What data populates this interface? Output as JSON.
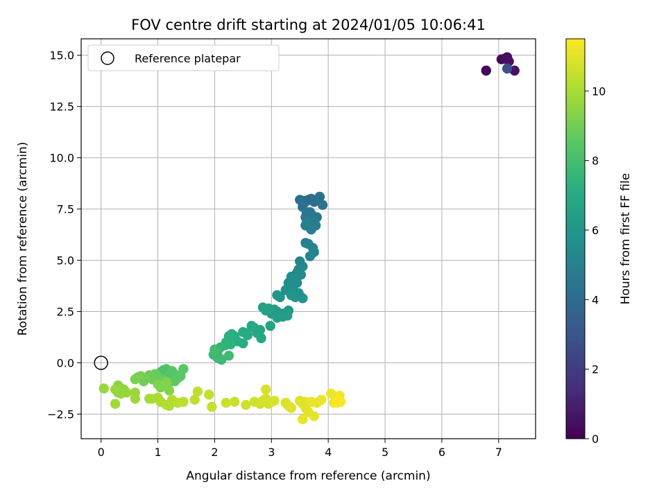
{
  "chart_data": {
    "type": "scatter",
    "title": "FOV centre drift starting at 2024/01/05 10:06:41",
    "xlabel": "Angular distance from reference (arcmin)",
    "ylabel": "Rotation from reference (arcmin)",
    "xlim": [
      -0.35,
      7.65
    ],
    "ylim": [
      -3.7,
      15.8
    ],
    "x_ticks": [
      0,
      1,
      2,
      3,
      4,
      5,
      6,
      7
    ],
    "y_ticks": [
      -2.5,
      0.0,
      2.5,
      5.0,
      7.5,
      10.0,
      12.5,
      15.0
    ],
    "x_tick_labels": [
      "0",
      "1",
      "2",
      "3",
      "4",
      "5",
      "6",
      "7"
    ],
    "y_tick_labels": [
      "−2.5",
      "0.0",
      "2.5",
      "5.0",
      "7.5",
      "10.0",
      "12.5",
      "15.0"
    ],
    "grid": true,
    "legend": {
      "placement": "upper-left",
      "entries": [
        "Reference platepar"
      ]
    },
    "reference_point": {
      "x": 0.0,
      "y": 0.0
    },
    "colorbar": {
      "label": "Hours from first FF file",
      "colormap": "viridis",
      "range": [
        0,
        11.5
      ],
      "ticks": [
        0,
        2,
        4,
        6,
        8,
        10
      ],
      "tick_labels": [
        "0",
        "2",
        "4",
        "6",
        "8",
        "10"
      ]
    },
    "points": [
      [
        6.78,
        14.25,
        0.1
      ],
      [
        7.05,
        14.8,
        0.2
      ],
      [
        7.12,
        14.85,
        0.3
      ],
      [
        7.15,
        14.9,
        0.4
      ],
      [
        7.18,
        14.7,
        0.5
      ],
      [
        7.28,
        14.25,
        0.6
      ],
      [
        7.15,
        14.35,
        2.8
      ],
      [
        3.55,
        7.9,
        4.0
      ],
      [
        3.6,
        7.85,
        4.05
      ],
      [
        3.65,
        7.95,
        4.1
      ],
      [
        3.7,
        8.0,
        4.15
      ],
      [
        3.75,
        7.85,
        4.2
      ],
      [
        3.5,
        7.95,
        4.25
      ],
      [
        3.55,
        7.6,
        4.3
      ],
      [
        3.85,
        8.1,
        4.35
      ],
      [
        3.9,
        7.7,
        4.4
      ],
      [
        3.62,
        7.3,
        4.5
      ],
      [
        3.68,
        7.35,
        4.55
      ],
      [
        3.72,
        7.2,
        4.6
      ],
      [
        3.6,
        7.1,
        4.65
      ],
      [
        3.8,
        7.1,
        4.7
      ],
      [
        3.75,
        6.8,
        4.75
      ],
      [
        3.65,
        6.9,
        4.8
      ],
      [
        3.6,
        6.7,
        4.85
      ],
      [
        3.7,
        6.5,
        4.9
      ],
      [
        3.78,
        6.7,
        4.95
      ],
      [
        3.62,
        6.85,
        5.0
      ],
      [
        3.6,
        5.85,
        5.05
      ],
      [
        3.65,
        5.8,
        5.1
      ],
      [
        3.73,
        5.6,
        5.15
      ],
      [
        3.75,
        5.4,
        5.2
      ],
      [
        3.68,
        5.2,
        5.25
      ],
      [
        3.5,
        4.95,
        5.3
      ],
      [
        3.55,
        4.7,
        5.35
      ],
      [
        3.48,
        4.55,
        5.4
      ],
      [
        3.45,
        4.4,
        5.45
      ],
      [
        3.52,
        4.3,
        5.5
      ],
      [
        3.4,
        4.1,
        5.55
      ],
      [
        3.35,
        4.2,
        5.6
      ],
      [
        3.45,
        3.9,
        5.65
      ],
      [
        3.3,
        3.9,
        5.7
      ],
      [
        3.25,
        3.55,
        5.75
      ],
      [
        3.38,
        3.6,
        5.8
      ],
      [
        3.48,
        3.4,
        5.85
      ],
      [
        3.55,
        3.15,
        5.9
      ],
      [
        3.42,
        3.2,
        5.95
      ],
      [
        3.35,
        3.3,
        5.98
      ],
      [
        3.1,
        3.3,
        6.05
      ],
      [
        3.15,
        3.2,
        6.1
      ],
      [
        3.3,
        2.55,
        6.15
      ],
      [
        3.2,
        2.4,
        6.2
      ],
      [
        3.1,
        2.5,
        6.25
      ],
      [
        3.05,
        2.6,
        6.3
      ],
      [
        3.0,
        2.4,
        6.35
      ],
      [
        3.2,
        2.25,
        6.4
      ],
      [
        3.1,
        2.2,
        6.45
      ],
      [
        3.28,
        2.3,
        6.5
      ],
      [
        2.85,
        2.7,
        6.55
      ],
      [
        2.9,
        2.55,
        6.6
      ],
      [
        2.95,
        2.65,
        6.65
      ],
      [
        2.98,
        1.8,
        6.7
      ],
      [
        2.8,
        1.6,
        6.75
      ],
      [
        2.75,
        1.45,
        6.8
      ],
      [
        2.82,
        1.2,
        6.85
      ],
      [
        2.7,
        1.7,
        6.9
      ],
      [
        2.65,
        1.8,
        6.95
      ],
      [
        2.55,
        1.45,
        7.0
      ],
      [
        2.5,
        1.5,
        7.05
      ],
      [
        2.58,
        1.35,
        7.1
      ],
      [
        2.5,
        0.95,
        7.15
      ],
      [
        2.4,
        1.05,
        7.2
      ],
      [
        2.35,
        1.3,
        7.25
      ],
      [
        2.3,
        1.4,
        7.3
      ],
      [
        2.25,
        1.3,
        7.35
      ],
      [
        2.2,
        1.0,
        7.4
      ],
      [
        2.28,
        0.9,
        7.45
      ],
      [
        2.18,
        0.85,
        7.5
      ],
      [
        2.1,
        0.75,
        7.55
      ],
      [
        2.0,
        0.65,
        7.6
      ],
      [
        2.05,
        0.55,
        7.65
      ],
      [
        1.98,
        0.4,
        7.7
      ],
      [
        2.1,
        0.2,
        7.75
      ],
      [
        2.05,
        0.25,
        7.8
      ],
      [
        2.12,
        0.15,
        7.85
      ],
      [
        2.25,
        0.35,
        7.9
      ],
      [
        2.0,
        0.6,
        7.95
      ],
      [
        1.1,
        -0.35,
        8.2
      ],
      [
        1.05,
        -0.45,
        8.25
      ],
      [
        1.15,
        -0.3,
        8.3
      ],
      [
        1.2,
        -0.5,
        8.35
      ],
      [
        1.3,
        -0.55,
        8.4
      ],
      [
        1.25,
        -0.4,
        8.45
      ],
      [
        1.45,
        -0.3,
        8.5
      ],
      [
        1.4,
        -0.65,
        8.55
      ],
      [
        1.35,
        -0.75,
        8.6
      ],
      [
        1.3,
        -0.9,
        8.65
      ],
      [
        1.2,
        -0.95,
        8.7
      ],
      [
        1.1,
        -0.85,
        8.75
      ],
      [
        1.0,
        -0.65,
        8.8
      ],
      [
        0.95,
        -0.55,
        8.85
      ],
      [
        0.9,
        -0.8,
        8.9
      ],
      [
        0.85,
        -0.6,
        8.95
      ],
      [
        0.8,
        -0.75,
        9.0
      ],
      [
        0.75,
        -0.9,
        9.05
      ],
      [
        0.7,
        -0.65,
        9.1
      ],
      [
        0.65,
        -0.7,
        9.15
      ],
      [
        0.6,
        -0.8,
        9.2
      ],
      [
        1.05,
        -1.2,
        9.25
      ],
      [
        1.0,
        -1.05,
        9.3
      ],
      [
        1.15,
        -0.95,
        9.35
      ],
      [
        1.2,
        -1.35,
        9.4
      ],
      [
        0.3,
        -1.1,
        9.45
      ],
      [
        0.35,
        -1.25,
        9.5
      ],
      [
        0.4,
        -1.3,
        9.55
      ],
      [
        0.3,
        -1.45,
        9.6
      ],
      [
        0.35,
        -1.5,
        9.65
      ],
      [
        0.45,
        -1.45,
        9.7
      ],
      [
        0.25,
        -1.3,
        9.72
      ],
      [
        0.05,
        -1.25,
        9.75
      ],
      [
        0.6,
        -1.45,
        9.8
      ],
      [
        0.6,
        -1.75,
        9.85
      ],
      [
        0.25,
        -2.0,
        9.9
      ],
      [
        0.85,
        -1.75,
        9.95
      ],
      [
        0.9,
        -1.75,
        10.0
      ],
      [
        1.0,
        -1.7,
        10.05
      ],
      [
        1.05,
        -1.9,
        10.1
      ],
      [
        1.15,
        -2.05,
        10.15
      ],
      [
        1.2,
        -2.1,
        10.2
      ],
      [
        1.25,
        -1.8,
        10.25
      ],
      [
        1.35,
        -1.95,
        10.3
      ],
      [
        1.45,
        -1.9,
        10.35
      ],
      [
        1.65,
        -1.8,
        10.4
      ],
      [
        1.7,
        -1.4,
        10.45
      ],
      [
        1.9,
        -1.55,
        10.5
      ],
      [
        1.95,
        -2.15,
        10.55
      ],
      [
        2.2,
        -1.95,
        10.6
      ],
      [
        2.35,
        -1.9,
        10.62
      ],
      [
        2.55,
        -2.05,
        10.65
      ],
      [
        2.7,
        -1.9,
        10.7
      ],
      [
        2.8,
        -2.0,
        10.72
      ],
      [
        2.85,
        -1.85,
        10.75
      ],
      [
        2.9,
        -1.75,
        10.78
      ],
      [
        2.95,
        -2.0,
        10.8
      ],
      [
        3.0,
        -1.9,
        10.82
      ],
      [
        3.05,
        -1.85,
        10.85
      ],
      [
        2.9,
        -1.3,
        10.88
      ],
      [
        3.25,
        -1.95,
        10.9
      ],
      [
        3.3,
        -2.1,
        10.92
      ],
      [
        3.35,
        -2.2,
        10.94
      ],
      [
        3.5,
        -1.85,
        10.96
      ],
      [
        3.55,
        -2.0,
        10.98
      ],
      [
        3.58,
        -1.9,
        11.0
      ],
      [
        3.6,
        -2.2,
        11.02
      ],
      [
        3.65,
        -2.4,
        11.05
      ],
      [
        3.55,
        -2.75,
        11.08
      ],
      [
        3.75,
        -2.6,
        11.1
      ],
      [
        3.8,
        -1.95,
        11.12
      ],
      [
        3.7,
        -1.9,
        11.15
      ],
      [
        3.88,
        -1.8,
        11.18
      ],
      [
        4.05,
        -1.5,
        11.2
      ],
      [
        4.1,
        -1.95,
        11.25
      ],
      [
        4.15,
        -1.8,
        11.3
      ],
      [
        4.2,
        -1.6,
        11.35
      ],
      [
        4.22,
        -1.9,
        11.4
      ],
      [
        4.15,
        -1.95,
        11.45
      ]
    ]
  }
}
